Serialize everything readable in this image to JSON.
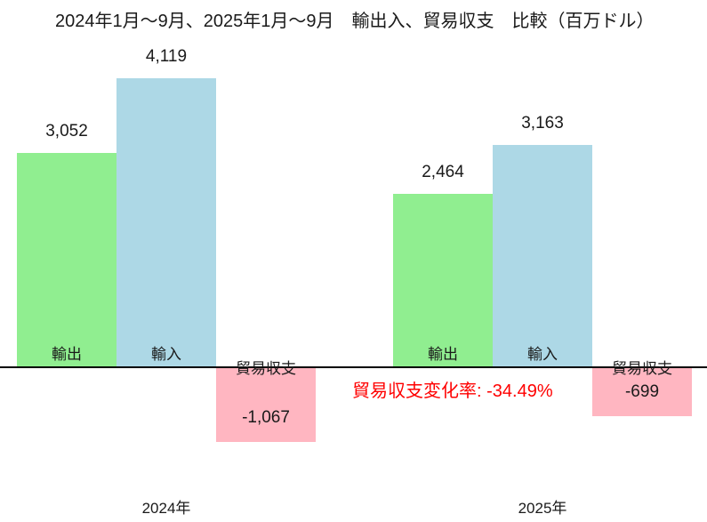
{
  "chart_data": {
    "type": "bar",
    "title": "2024年1月〜9月、2025年1月〜9月　輸出入、貿易収支　比較（百万ドル）",
    "unit": "百万ドル",
    "categories": [
      "2024年",
      "2025年"
    ],
    "category_keys": [
      "2024",
      "2025"
    ],
    "series": [
      {
        "key": "export",
        "name": "輸出",
        "color": "#90EE90",
        "values": [
          3052,
          2464
        ],
        "display_values": [
          "3,052",
          "2,464"
        ]
      },
      {
        "key": "import",
        "name": "輸入",
        "color": "#ADD8E6",
        "values": [
          4119,
          3163
        ],
        "display_values": [
          "4,119",
          "3,163"
        ]
      },
      {
        "key": "trade_balance",
        "name": "貿易収支",
        "color": "#FFB6C1",
        "values": [
          -1067,
          -699
        ],
        "display_values": [
          "-1,067",
          "-699"
        ]
      }
    ],
    "annotation": {
      "text": "貿易収支変化率: -34.49%",
      "color": "#ff0000"
    },
    "axis": {
      "baseline": 0,
      "line_color": "#000000",
      "grid": false,
      "y_axis_visible": false
    },
    "ylim_px_scale_note": "",
    "legend_position": "none"
  }
}
